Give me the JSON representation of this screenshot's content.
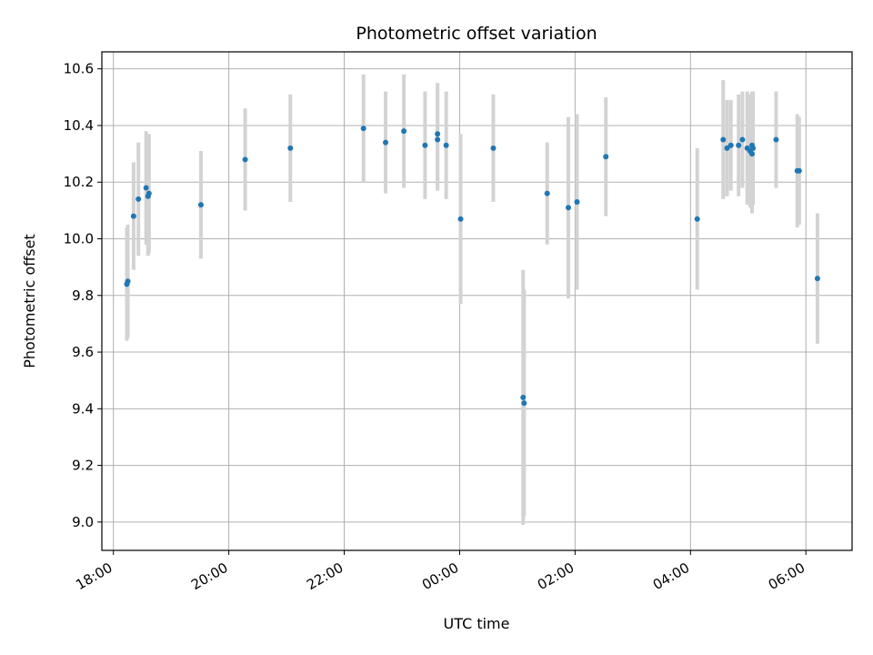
{
  "chart_data": {
    "type": "scatter",
    "title": "Photometric offset variation",
    "xlabel": "UTC time",
    "ylabel": "Photometric offset",
    "x_start": "18:00",
    "x_tick_labels": [
      "18:00",
      "20:00",
      "22:00",
      "00:00",
      "02:00",
      "04:00",
      "06:00"
    ],
    "y_ticks": [
      9.0,
      9.2,
      9.4,
      9.6,
      9.8,
      10.0,
      10.2,
      10.4,
      10.6
    ],
    "y_tick_labels": [
      "9.0",
      "9.2",
      "9.4",
      "9.6",
      "9.8",
      "10.0",
      "10.2",
      "10.4",
      "10.6"
    ],
    "xlim": [
      "17:48",
      "06:48"
    ],
    "ylim": [
      8.9,
      10.66
    ],
    "grid": true,
    "colors": {
      "point": "#1f77b4",
      "errorbar": "#d3d3d3",
      "grid": "#b0b0b0"
    },
    "points": [
      {
        "t": "18:14",
        "y": 9.84,
        "err": 0.2
      },
      {
        "t": "18:15",
        "y": 9.85,
        "err": 0.2
      },
      {
        "t": "18:21",
        "y": 10.08,
        "err": 0.19
      },
      {
        "t": "18:26",
        "y": 10.14,
        "err": 0.2
      },
      {
        "t": "18:34",
        "y": 10.18,
        "err": 0.2
      },
      {
        "t": "18:36",
        "y": 10.15,
        "err": 0.21
      },
      {
        "t": "18:37",
        "y": 10.16,
        "err": 0.21
      },
      {
        "t": "19:31",
        "y": 10.12,
        "err": 0.19
      },
      {
        "t": "20:17",
        "y": 10.28,
        "err": 0.18
      },
      {
        "t": "21:04",
        "y": 10.32,
        "err": 0.19
      },
      {
        "t": "22:20",
        "y": 10.39,
        "err": 0.19
      },
      {
        "t": "22:43",
        "y": 10.34,
        "err": 0.18
      },
      {
        "t": "23:02",
        "y": 10.38,
        "err": 0.2
      },
      {
        "t": "23:24",
        "y": 10.33,
        "err": 0.19
      },
      {
        "t": "23:37",
        "y": 10.35,
        "err": 0.18
      },
      {
        "t": "23:37",
        "y": 10.37,
        "err": 0.18
      },
      {
        "t": "23:46",
        "y": 10.33,
        "err": 0.19
      },
      {
        "t": "00:01",
        "y": 10.07,
        "err": 0.3
      },
      {
        "t": "00:35",
        "y": 10.32,
        "err": 0.19
      },
      {
        "t": "01:06",
        "y": 9.44,
        "err": 0.45
      },
      {
        "t": "01:07",
        "y": 9.42,
        "err": 0.4
      },
      {
        "t": "01:31",
        "y": 10.16,
        "err": 0.18
      },
      {
        "t": "01:53",
        "y": 10.11,
        "err": 0.32
      },
      {
        "t": "02:02",
        "y": 10.13,
        "err": 0.31
      },
      {
        "t": "02:32",
        "y": 10.29,
        "err": 0.21
      },
      {
        "t": "04:07",
        "y": 10.07,
        "err": 0.25
      },
      {
        "t": "04:34",
        "y": 10.35,
        "err": 0.21
      },
      {
        "t": "04:38",
        "y": 10.32,
        "err": 0.17
      },
      {
        "t": "04:42",
        "y": 10.33,
        "err": 0.16
      },
      {
        "t": "04:50",
        "y": 10.33,
        "err": 0.18
      },
      {
        "t": "04:54",
        "y": 10.35,
        "err": 0.17
      },
      {
        "t": "04:59",
        "y": 10.32,
        "err": 0.2
      },
      {
        "t": "05:02",
        "y": 10.31,
        "err": 0.2
      },
      {
        "t": "05:04",
        "y": 10.3,
        "err": 0.21
      },
      {
        "t": "05:04",
        "y": 10.33,
        "err": 0.19
      },
      {
        "t": "05:05",
        "y": 10.32,
        "err": 0.2
      },
      {
        "t": "05:29",
        "y": 10.35,
        "err": 0.17
      },
      {
        "t": "05:51",
        "y": 10.24,
        "err": 0.2
      },
      {
        "t": "05:53",
        "y": 10.24,
        "err": 0.19
      },
      {
        "t": "06:12",
        "y": 9.86,
        "err": 0.23
      }
    ]
  }
}
